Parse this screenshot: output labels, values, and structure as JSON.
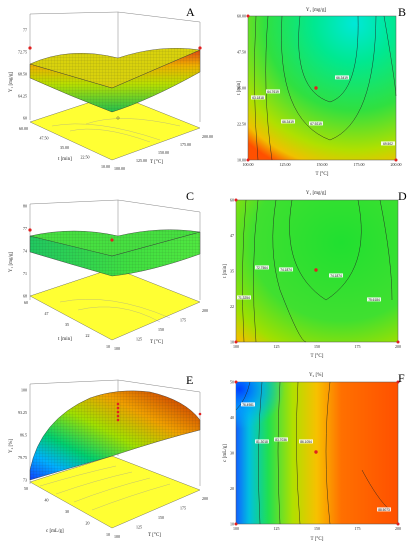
{
  "figure": {
    "panel_letters": [
      "A",
      "B",
      "C",
      "D",
      "E",
      "F"
    ]
  },
  "chart_data": [
    {
      "panel": "A",
      "type": "surface3d",
      "zlabel": "Y₁ [mg/g]",
      "xlabel": "t [min]",
      "ylabel": "T [°C]",
      "z_ticks": [
        "60",
        "64.25",
        "68.50",
        "72.75",
        "77"
      ],
      "x_ticks": [
        "10.00",
        "22.50",
        "35.00",
        "47.50",
        "60.00"
      ],
      "y_ticks": [
        "100.00",
        "125.00",
        "150.00",
        "175.00",
        "200.00"
      ],
      "colormap": [
        "#0a3cff",
        "#00c8ff",
        "#00e060",
        "#d8e800",
        "#ff9a00",
        "#e01000"
      ],
      "floor_color": "#ffff33"
    },
    {
      "panel": "B",
      "type": "contour",
      "title": "Y₁ [mg/g]",
      "xlabel": "T [°C]",
      "ylabel": "t [min]",
      "x_ticks": [
        "100.00",
        "125.00",
        "150.00",
        "175.00",
        "200.00"
      ],
      "y_ticks": [
        "10.00",
        "22.50",
        "35.00",
        "47.50",
        "60.00"
      ],
      "contour_labels": [
        "63.1818",
        "64.7619",
        "66.3419",
        "66.3419",
        "67.9219",
        "69.502"
      ],
      "center_point": {
        "T": 150,
        "t": 35
      }
    },
    {
      "panel": "C",
      "type": "surface3d",
      "zlabel": "Y₁ [mg/g]",
      "xlabel": "t [min]",
      "ylabel": "T [°C]",
      "z_ticks": [
        "68",
        "71",
        "74",
        "77",
        "80"
      ],
      "x_ticks": [
        "10",
        "22",
        "35",
        "47",
        "60"
      ],
      "y_ticks": [
        "100",
        "125",
        "150",
        "175",
        "200"
      ],
      "colormap": [
        "#00e060",
        "#40f040",
        "#d8e800"
      ],
      "floor_color": "#ffff33"
    },
    {
      "panel": "D",
      "type": "contour",
      "title": "Y₁ [mg/g]",
      "xlabel": "T [°C]",
      "ylabel": "t [min]",
      "x_ticks": [
        "100",
        "125",
        "150",
        "175",
        "200"
      ],
      "y_ticks": [
        "10",
        "22",
        "35",
        "47",
        "60"
      ],
      "contour_labels": [
        "71.3254",
        "72.7564",
        "74.1874",
        "74.1874",
        "75.6184"
      ],
      "center_point": {
        "T": 150,
        "t": 35
      }
    },
    {
      "panel": "E",
      "type": "surface3d",
      "zlabel": "Y₂ [%]",
      "xlabel": "c [mL/g]",
      "ylabel": "T [°C]",
      "z_ticks": [
        "73",
        "79.75",
        "86.5",
        "93.25",
        "100"
      ],
      "x_ticks": [
        "10",
        "20",
        "30",
        "40",
        "50"
      ],
      "y_ticks": [
        "100",
        "125",
        "150",
        "175",
        "200"
      ],
      "colormap": [
        "#0a3cff",
        "#00c8ff",
        "#00e060",
        "#d8e800",
        "#ff9a00",
        "#e01000"
      ],
      "floor_color": "#ffff33"
    },
    {
      "panel": "F",
      "type": "contour",
      "title": "Y₂ [%]",
      "xlabel": "T [°C]",
      "ylabel": "c [mL/g]",
      "x_ticks": [
        "100",
        "125",
        "150",
        "175",
        "200"
      ],
      "y_ticks": [
        "10",
        "20",
        "30",
        "40",
        "50"
      ],
      "contour_labels": [
        "76.4981",
        "81.3018",
        "83.7036",
        "86.1054",
        "88.5073"
      ],
      "center_point": {
        "T": 150,
        "c": 30
      }
    }
  ]
}
